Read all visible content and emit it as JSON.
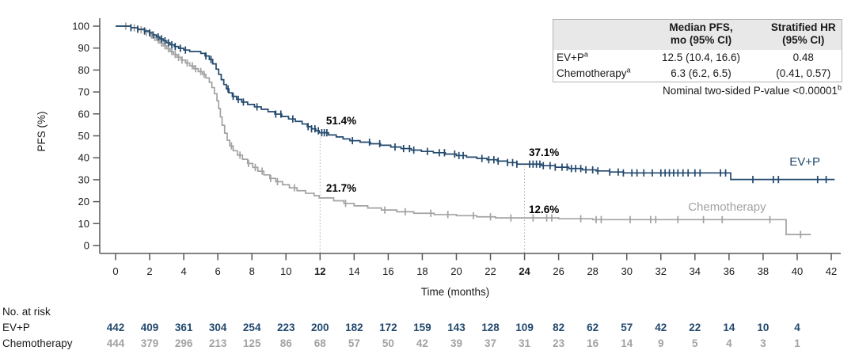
{
  "figure": {
    "y_axis": {
      "label": "PFS (%)",
      "ticks": [
        0,
        10,
        20,
        30,
        40,
        50,
        60,
        70,
        80,
        90,
        100
      ]
    },
    "x_axis": {
      "label": "Time (months)",
      "ticks": [
        0,
        2,
        4,
        6,
        8,
        10,
        12,
        14,
        16,
        18,
        20,
        22,
        24,
        26,
        28,
        30,
        32,
        34,
        36,
        38,
        40,
        42
      ],
      "bold_ticks": [
        12,
        24
      ]
    },
    "stats_table": {
      "col1_line1": "Median PFS,",
      "col1_line2": "mo (95% CI)",
      "col2_line1": "Stratified HR",
      "col2_line2": "(95% CI)",
      "rows": [
        {
          "label": "EV+P",
          "sup": "a",
          "median": "12.5 (10.4, 16.6)",
          "hr": "0.48"
        },
        {
          "label": "Chemotherapy",
          "sup": "a",
          "median": "6.3 (6.2, 6.5)",
          "hr": "(0.41, 0.57)"
        }
      ]
    },
    "p_value_note": {
      "text": "Nominal two-sided P-value <0.00001",
      "sup": "b"
    },
    "risk_table": {
      "title": "No. at risk",
      "months": [
        0,
        2,
        4,
        6,
        8,
        10,
        12,
        14,
        16,
        18,
        20,
        22,
        24,
        26,
        28,
        30,
        32,
        34,
        36,
        38,
        40
      ],
      "rows": [
        {
          "label": "EV+P",
          "color": "#22486d",
          "values": [
            442,
            409,
            361,
            304,
            254,
            223,
            200,
            182,
            172,
            159,
            143,
            128,
            109,
            82,
            62,
            57,
            42,
            22,
            14,
            10,
            4
          ]
        },
        {
          "label": "Chemotherapy",
          "color": "#a2a2a2",
          "values": [
            444,
            379,
            296,
            213,
            125,
            86,
            68,
            57,
            50,
            42,
            39,
            37,
            31,
            23,
            16,
            14,
            9,
            5,
            4,
            3,
            1
          ]
        }
      ]
    }
  },
  "chart_data": {
    "type": "line",
    "subtype": "kaplan-meier-step",
    "title": "",
    "xlabel": "Time (months)",
    "ylabel": "PFS (%)",
    "xlim": [
      0,
      42
    ],
    "ylim": [
      0,
      100
    ],
    "grid": false,
    "legend_position": "curve-end-labels",
    "series": [
      {
        "name": "Chemotherapy",
        "color": "#a2a2a2",
        "median_pfs": "6.3 (6.2, 6.5)",
        "end_month": 40.8,
        "label_pos": {
          "month": 33.6,
          "pct": 15.9
        },
        "steps": [
          [
            0,
            100
          ],
          [
            0.9,
            99.2
          ],
          [
            1.3,
            98.3
          ],
          [
            1.7,
            97.2
          ],
          [
            2.0,
            96.0
          ],
          [
            2.2,
            94.8
          ],
          [
            2.4,
            93.6
          ],
          [
            2.6,
            92.3
          ],
          [
            2.8,
            91.0
          ],
          [
            3.0,
            89.7
          ],
          [
            3.2,
            88.4
          ],
          [
            3.4,
            87.1
          ],
          [
            3.6,
            85.8
          ],
          [
            3.85,
            84.5
          ],
          [
            4.1,
            83.2
          ],
          [
            4.35,
            81.9
          ],
          [
            4.6,
            80.6
          ],
          [
            4.85,
            79.3
          ],
          [
            5.1,
            78.0
          ],
          [
            5.3,
            76.4
          ],
          [
            5.5,
            74.4
          ],
          [
            5.65,
            72.0
          ],
          [
            5.8,
            69.2
          ],
          [
            5.95,
            66.0
          ],
          [
            6.05,
            62.4
          ],
          [
            6.15,
            58.6
          ],
          [
            6.25,
            54.8
          ],
          [
            6.4,
            51.2
          ],
          [
            6.55,
            48.0
          ],
          [
            6.7,
            45.4
          ],
          [
            6.9,
            43.2
          ],
          [
            7.15,
            41.2
          ],
          [
            7.45,
            39.3
          ],
          [
            7.75,
            37.4
          ],
          [
            8.05,
            35.6
          ],
          [
            8.35,
            33.9
          ],
          [
            8.7,
            32.2
          ],
          [
            9.05,
            30.6
          ],
          [
            9.4,
            29.1
          ],
          [
            9.8,
            27.7
          ],
          [
            10.2,
            26.3
          ],
          [
            10.65,
            25.0
          ],
          [
            11.15,
            23.8
          ],
          [
            11.65,
            22.7
          ],
          [
            11.95,
            21.7
          ],
          [
            12.8,
            20.4
          ],
          [
            13.4,
            19.2
          ],
          [
            14.0,
            18.1
          ],
          [
            14.8,
            17.1
          ],
          [
            15.6,
            16.2
          ],
          [
            16.5,
            15.4
          ],
          [
            17.5,
            14.7
          ],
          [
            18.7,
            14.1
          ],
          [
            20.0,
            13.6
          ],
          [
            21.2,
            13.1
          ],
          [
            22.3,
            12.6
          ],
          [
            26.0,
            12.2
          ],
          [
            28.0,
            11.8
          ],
          [
            39.35,
            5.0
          ]
        ],
        "censor_months": [
          0.6,
          1.1,
          1.5,
          1.8,
          2.1,
          2.3,
          2.5,
          2.7,
          2.9,
          3.1,
          3.3,
          3.5,
          3.7,
          3.9,
          4.2,
          4.5,
          4.7,
          5.0,
          5.2,
          6.8,
          7.3,
          7.8,
          8.2,
          8.6,
          9.1,
          9.5,
          10.5,
          13.5,
          15.8,
          17.0,
          18.5,
          19.5,
          21.0,
          22.0,
          23.2,
          24.5,
          25.3,
          25.6,
          27.3,
          28.2,
          28.5,
          30.2,
          31.4,
          31.7,
          33.0,
          34.5,
          35.6,
          38.4,
          40.2
        ]
      },
      {
        "name": "EV+P",
        "color": "#22486d",
        "median_pfs": "12.5 (10.4, 16.6)",
        "end_month": 42.2,
        "label_pos": {
          "month": 39.55,
          "pct": 36.5
        },
        "steps": [
          [
            0,
            100
          ],
          [
            0.9,
            99.3
          ],
          [
            1.3,
            98.6
          ],
          [
            1.7,
            97.8
          ],
          [
            2.0,
            96.9
          ],
          [
            2.2,
            96.0
          ],
          [
            2.4,
            95.1
          ],
          [
            2.6,
            94.2
          ],
          [
            2.8,
            93.3
          ],
          [
            3.0,
            92.4
          ],
          [
            3.2,
            91.5
          ],
          [
            3.45,
            90.7
          ],
          [
            3.7,
            89.9
          ],
          [
            4.0,
            89.1
          ],
          [
            4.35,
            88.4
          ],
          [
            5.0,
            87.6
          ],
          [
            5.25,
            86.4
          ],
          [
            5.5,
            84.8
          ],
          [
            5.7,
            82.8
          ],
          [
            5.9,
            80.4
          ],
          [
            6.05,
            78.0
          ],
          [
            6.2,
            75.6
          ],
          [
            6.35,
            73.4
          ],
          [
            6.5,
            71.4
          ],
          [
            6.65,
            69.6
          ],
          [
            6.85,
            68.0
          ],
          [
            7.1,
            66.6
          ],
          [
            7.4,
            65.4
          ],
          [
            7.75,
            64.3
          ],
          [
            8.15,
            63.2
          ],
          [
            8.55,
            62.1
          ],
          [
            8.95,
            61.0
          ],
          [
            9.35,
            59.9
          ],
          [
            9.75,
            58.8
          ],
          [
            10.15,
            57.7
          ],
          [
            10.55,
            56.6
          ],
          [
            10.95,
            55.4
          ],
          [
            11.25,
            54.2
          ],
          [
            11.5,
            53.2
          ],
          [
            11.75,
            52.3
          ],
          [
            11.95,
            51.4
          ],
          [
            12.5,
            50.4
          ],
          [
            12.95,
            49.5
          ],
          [
            13.35,
            48.6
          ],
          [
            13.75,
            47.8
          ],
          [
            14.35,
            47.1
          ],
          [
            14.95,
            46.4
          ],
          [
            15.55,
            45.7
          ],
          [
            16.15,
            44.9
          ],
          [
            16.75,
            44.2
          ],
          [
            17.35,
            43.5
          ],
          [
            17.95,
            42.9
          ],
          [
            18.65,
            42.3
          ],
          [
            19.35,
            41.7
          ],
          [
            20.0,
            41.0
          ],
          [
            20.6,
            40.3
          ],
          [
            21.2,
            39.7
          ],
          [
            21.8,
            39.1
          ],
          [
            22.4,
            38.5
          ],
          [
            23.0,
            37.8
          ],
          [
            23.55,
            37.1
          ],
          [
            25.0,
            36.4
          ],
          [
            25.8,
            35.7
          ],
          [
            26.6,
            35.1
          ],
          [
            27.4,
            34.5
          ],
          [
            28.2,
            34.0
          ],
          [
            29.0,
            33.5
          ],
          [
            29.8,
            33.1
          ],
          [
            36.1,
            30.1
          ]
        ],
        "censor_months": [
          0.9,
          1.3,
          1.7,
          2.0,
          2.2,
          2.5,
          2.7,
          2.9,
          3.1,
          3.3,
          3.5,
          3.8,
          4.1,
          5.3,
          5.6,
          6.6,
          6.9,
          7.2,
          7.5,
          8.3,
          9.4,
          9.7,
          10.4,
          11.3,
          11.5,
          11.7,
          11.9,
          12.1,
          12.25,
          12.4,
          13.9,
          14.9,
          15.5,
          16.4,
          16.9,
          17.25,
          17.5,
          18.3,
          19.0,
          19.3,
          19.9,
          20.15,
          20.4,
          21.5,
          21.9,
          22.2,
          22.45,
          23.0,
          23.3,
          23.55,
          24.3,
          24.5,
          24.7,
          24.9,
          25.1,
          25.5,
          25.8,
          26.2,
          26.5,
          26.75,
          27.0,
          27.3,
          27.6,
          28.0,
          28.3,
          29.0,
          29.5,
          29.8,
          30.3,
          30.6,
          31.0,
          31.5,
          32.0,
          32.25,
          32.5,
          32.75,
          33.0,
          33.3,
          33.6,
          34.0,
          34.3,
          35.5,
          35.8,
          37.4,
          38.6,
          38.9,
          41.2,
          41.7
        ]
      }
    ],
    "reference_lines": [
      {
        "month": 12,
        "to_pct": 51.4
      },
      {
        "month": 24,
        "to_pct": 37.1
      }
    ],
    "annotations": [
      {
        "text": "51.4%",
        "month": 12.35,
        "pct": 55.2,
        "series": "EV+P",
        "at_month": 12
      },
      {
        "text": "21.7%",
        "month": 12.35,
        "pct": 24.5,
        "series": "Chemotherapy",
        "at_month": 12
      },
      {
        "text": "37.1%",
        "month": 24.25,
        "pct": 40.8,
        "series": "EV+P",
        "at_month": 24
      },
      {
        "text": "12.6%",
        "month": 24.25,
        "pct": 14.8,
        "series": "Chemotherapy",
        "at_month": 24
      }
    ]
  }
}
